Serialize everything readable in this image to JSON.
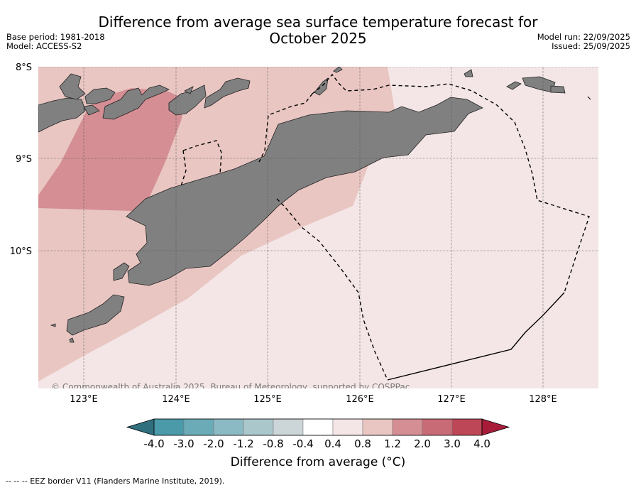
{
  "header": {
    "title_line1": "Difference from average sea surface temperature forecast for",
    "title_line2": "October 2025",
    "base_period": "Base period: 1981-2018",
    "model": "Model: ACCESS-S2",
    "model_run": "Model run: 22/09/2025",
    "issued": "Issued: 25/09/2025"
  },
  "map": {
    "lat_labels": [
      "8°S",
      "9°S",
      "10°S"
    ],
    "lon_labels": [
      "123°E",
      "124°E",
      "125°E",
      "126°E",
      "127°E",
      "128°E"
    ],
    "copyright": "© Commonwealth of Australia 2025, Bureau of Meteorology, supported by COSPPac",
    "land_color": "#808080"
  },
  "colorbar": {
    "colors": [
      "#2f6f7e",
      "#4a9aaa",
      "#6aabb7",
      "#8bb9c4",
      "#aac7cc",
      "#ccd5d8",
      "#ffffff",
      "#f4e6e6",
      "#e9c6c2",
      "#d48e94",
      "#c96b76",
      "#bd4756",
      "#a81c3a"
    ],
    "tick_labels": [
      "-4.0",
      "-3.0",
      "-2.0",
      "-1.2",
      "-0.8",
      "-0.4",
      "0.4",
      "0.8",
      "1.2",
      "2.0",
      "3.0",
      "4.0"
    ],
    "label": "Difference from average (°C)"
  },
  "footnote": "--  --  -- EEZ border V11 (Flanders Marine Institute, 2019)."
}
